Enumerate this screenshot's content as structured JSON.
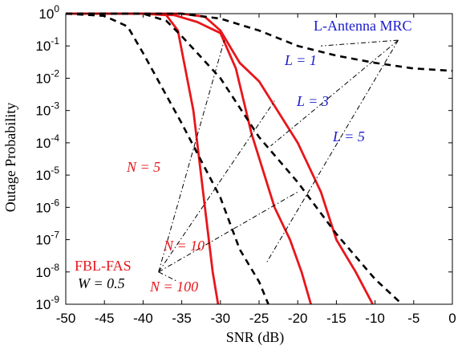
{
  "chart_data": {
    "type": "line",
    "xlabel": "SNR (dB)",
    "ylabel": "Outage Probability",
    "xlim": [
      -50,
      0
    ],
    "ylim": [
      1e-09,
      1
    ],
    "yscale": "log",
    "x_ticks": [
      -50,
      -45,
      -40,
      -35,
      -30,
      -25,
      -20,
      -15,
      -10,
      -5,
      0
    ],
    "y_ticks": [
      {
        "base": "10",
        "exp": "0",
        "value": 1
      },
      {
        "base": "10",
        "exp": "-1",
        "value": 0.1
      },
      {
        "base": "10",
        "exp": "-2",
        "value": 0.01
      },
      {
        "base": "10",
        "exp": "-3",
        "value": 0.001
      },
      {
        "base": "10",
        "exp": "-4",
        "value": 0.0001
      },
      {
        "base": "10",
        "exp": "-5",
        "value": 1e-05
      },
      {
        "base": "10",
        "exp": "-6",
        "value": 1e-06
      },
      {
        "base": "10",
        "exp": "-7",
        "value": 1e-07
      },
      {
        "base": "10",
        "exp": "-8",
        "value": 1e-08
      },
      {
        "base": "10",
        "exp": "-9",
        "value": 1e-09
      }
    ],
    "grid": false,
    "series": [
      {
        "group": "FBL-FAS",
        "label": "N = 5",
        "color": "#e8161b",
        "style": "solid",
        "points": [
          [
            -50,
            1
          ],
          [
            -40,
            1
          ],
          [
            -37,
            0.9
          ],
          [
            -35.5,
            0.3
          ],
          [
            -33.5,
            0.001
          ],
          [
            -32,
            1e-06
          ],
          [
            -31,
            1e-08
          ],
          [
            -30.3,
            1e-09
          ]
        ]
      },
      {
        "group": "FBL-FAS",
        "label": "N = 10",
        "color": "#e8161b",
        "style": "solid",
        "points": [
          [
            -50,
            1
          ],
          [
            -40,
            1
          ],
          [
            -36,
            0.9
          ],
          [
            -33,
            0.55
          ],
          [
            -30,
            0.25
          ],
          [
            -28,
            0.02
          ],
          [
            -26,
            0.0002
          ],
          [
            -23,
            1e-06
          ],
          [
            -21,
            1e-07
          ],
          [
            -19.5,
            1e-08
          ],
          [
            -18.3,
            1e-09
          ]
        ]
      },
      {
        "group": "FBL-FAS",
        "label": "N = 100",
        "color": "#e8161b",
        "style": "solid",
        "points": [
          [
            -50,
            1
          ],
          [
            -35,
            1
          ],
          [
            -32,
            0.8
          ],
          [
            -30,
            0.3
          ],
          [
            -27.5,
            0.03
          ],
          [
            -25,
            0.008
          ],
          [
            -20,
            0.0001
          ],
          [
            -17,
            3e-06
          ],
          [
            -15,
            1e-07
          ],
          [
            -12.5,
            1e-08
          ],
          [
            -10.3,
            1e-09
          ]
        ]
      },
      {
        "group": "L-Antenna MRC",
        "label": "L = 1",
        "color": "#000000",
        "style": "dashed",
        "points": [
          [
            -50,
            1
          ],
          [
            -35,
            1
          ],
          [
            -30,
            0.7
          ],
          [
            -25,
            0.3
          ],
          [
            -20,
            0.1
          ],
          [
            -15,
            0.05
          ],
          [
            -10,
            0.03
          ],
          [
            -5,
            0.02
          ],
          [
            0,
            0.017
          ]
        ]
      },
      {
        "group": "L-Antenna MRC",
        "label": "L = 3",
        "color": "#000000",
        "style": "dashed",
        "points": [
          [
            -50,
            1
          ],
          [
            -45,
            0.85
          ],
          [
            -42,
            0.4
          ],
          [
            -40,
            0.06
          ],
          [
            -35,
            0.0004
          ],
          [
            -30,
            2e-06
          ],
          [
            -27.5,
            5e-08
          ],
          [
            -25,
            5e-09
          ],
          [
            -23.8,
            1e-09
          ]
        ]
      },
      {
        "group": "L-Antenna MRC",
        "label": "L = 5",
        "color": "#000000",
        "style": "dashed",
        "points": [
          [
            -50,
            1
          ],
          [
            -40,
            1
          ],
          [
            -37,
            0.6
          ],
          [
            -35,
            0.2
          ],
          [
            -30,
            0.01
          ],
          [
            -25,
            0.00015
          ],
          [
            -20,
            6e-06
          ],
          [
            -15,
            1.5e-07
          ],
          [
            -10,
            6e-09
          ],
          [
            -6.5,
            1e-09
          ]
        ]
      }
    ],
    "annotations": {
      "mrc": {
        "label": "L-Antenna MRC",
        "L1": "L = 1",
        "L3": "L = 3",
        "L5": "L = 5"
      },
      "fas": {
        "label": "FBL-FAS",
        "W": "W = 0.5",
        "N5": "N = 5",
        "N10": "N = 10",
        "N100": "N = 100"
      }
    },
    "legend": "none"
  }
}
